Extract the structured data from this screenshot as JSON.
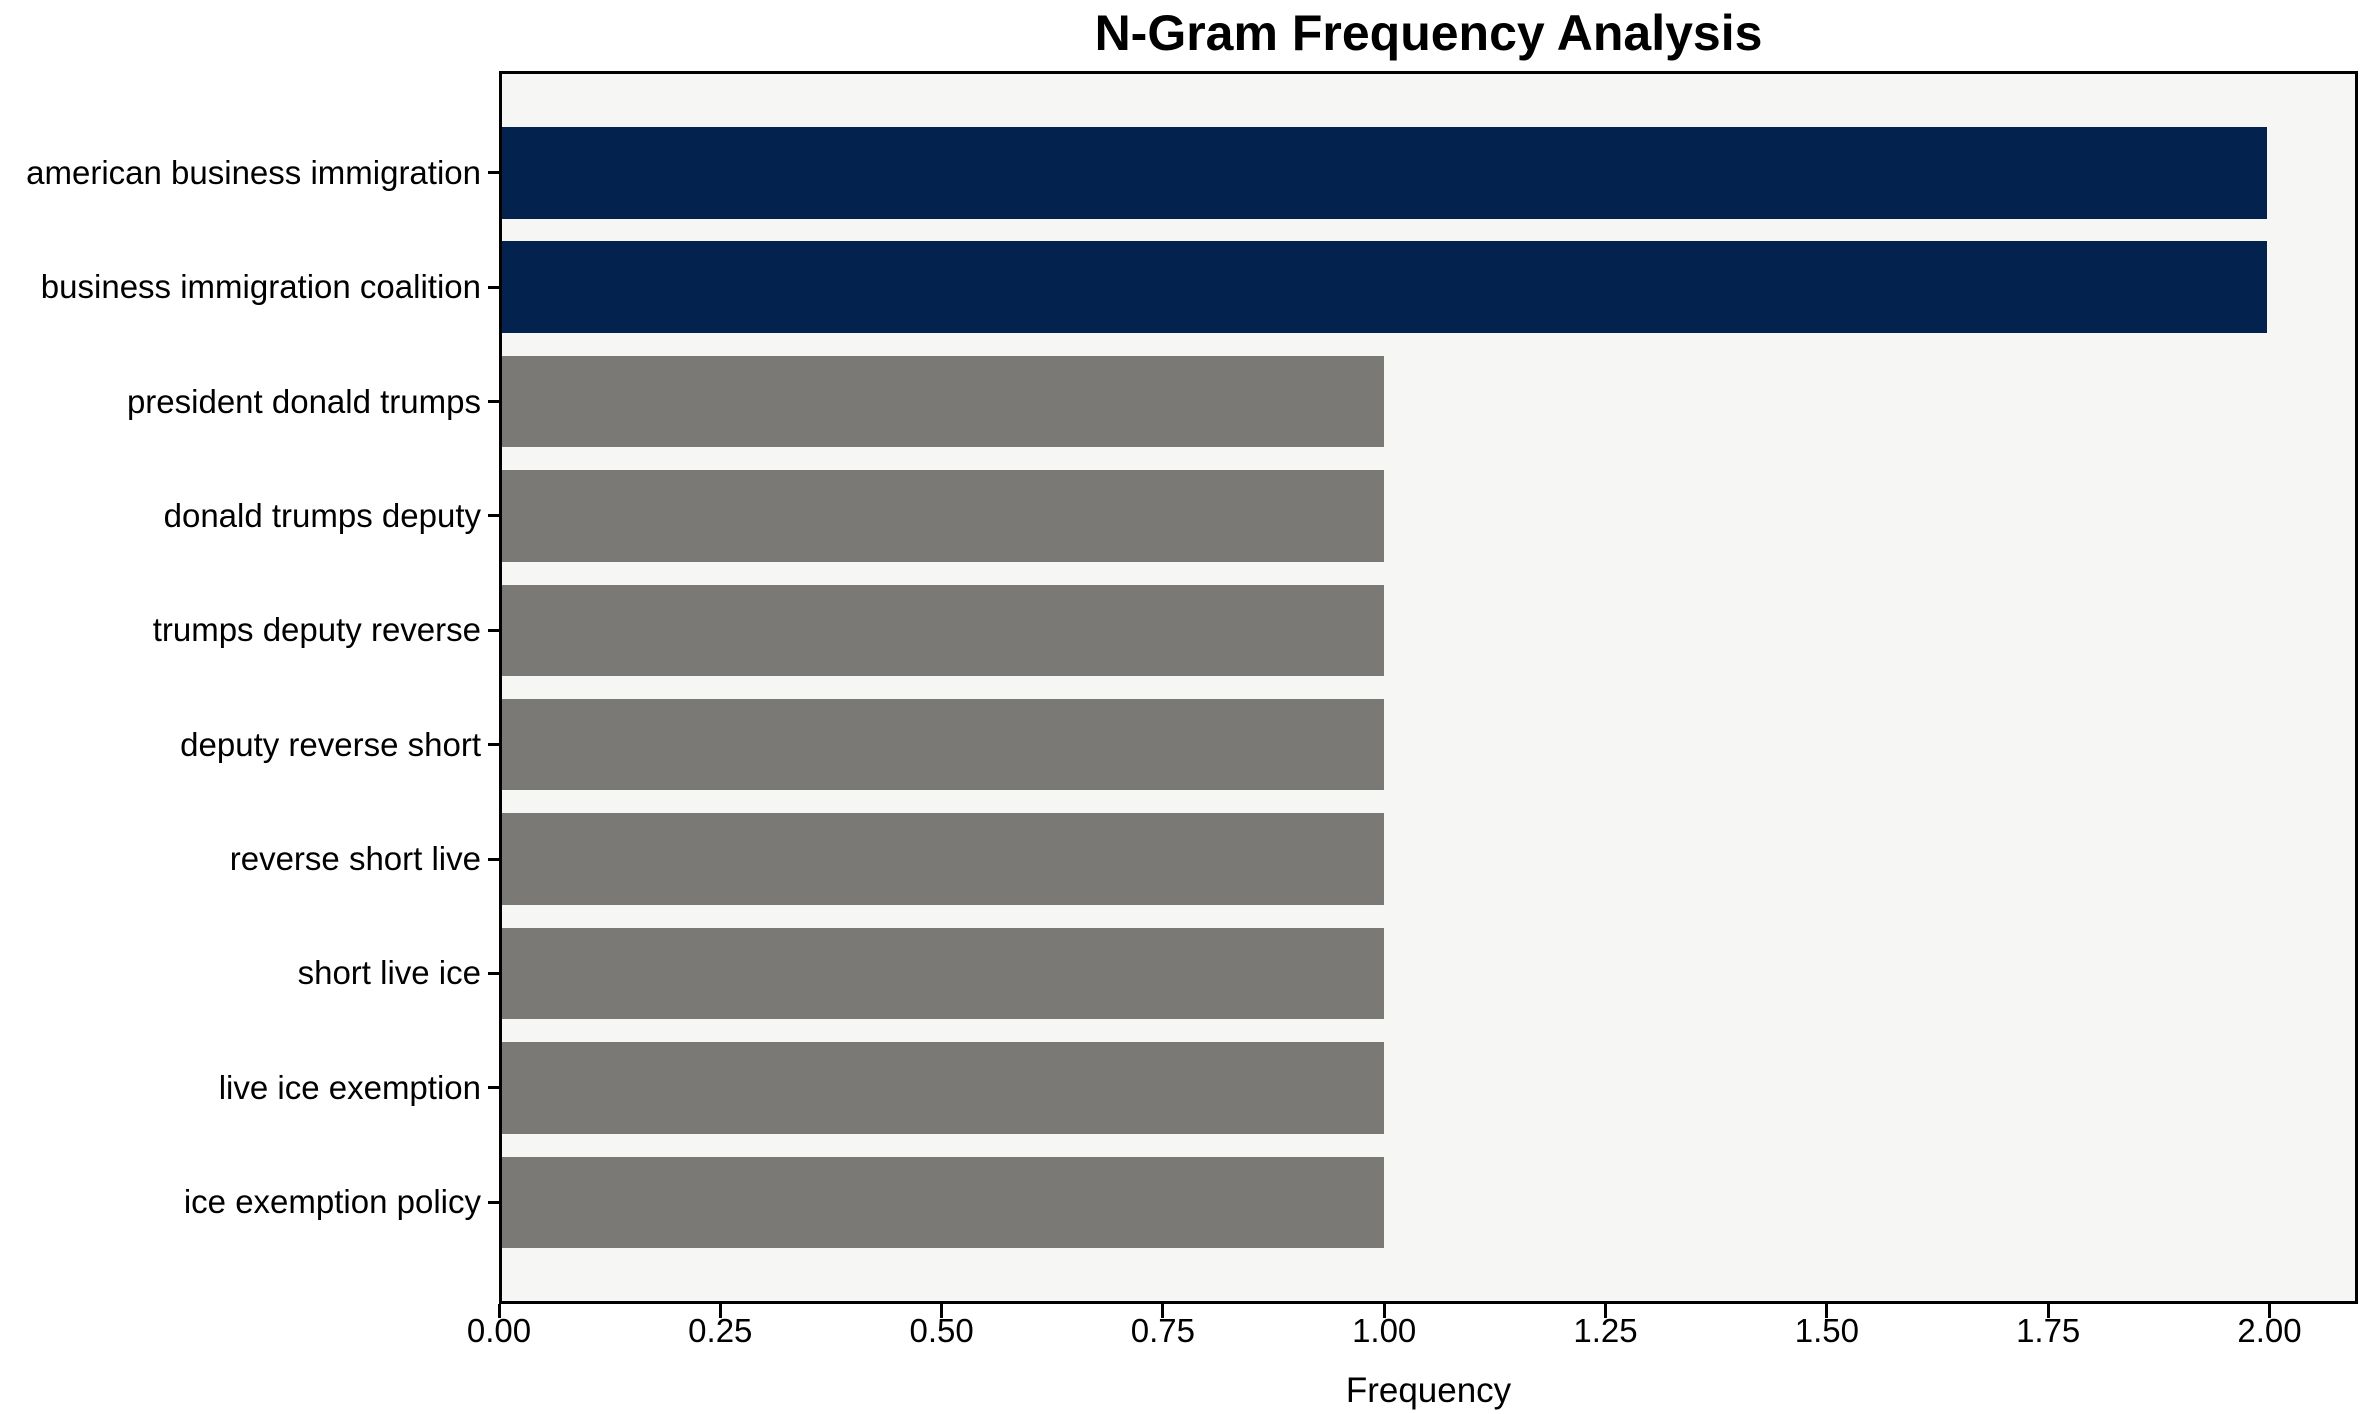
{
  "chart_data": {
    "type": "bar",
    "orientation": "horizontal",
    "title": "N-Gram Frequency Analysis",
    "xlabel": "Frequency",
    "ylabel": "",
    "categories": [
      "american business immigration",
      "business immigration coalition",
      "president donald trumps",
      "donald trumps deputy",
      "trumps deputy reverse",
      "deputy reverse short",
      "reverse short live",
      "short live ice",
      "live ice exemption",
      "ice exemption policy"
    ],
    "values": [
      2,
      2,
      1,
      1,
      1,
      1,
      1,
      1,
      1,
      1
    ],
    "bar_colors": [
      "#03234e",
      "#03234e",
      "#7a7975",
      "#7a7975",
      "#7a7975",
      "#7a7975",
      "#7a7975",
      "#7a7975",
      "#7a7975",
      "#7a7975"
    ],
    "xlim": [
      0,
      2.1
    ],
    "xticks": [
      "0.00",
      "0.25",
      "0.50",
      "0.75",
      "1.00",
      "1.25",
      "1.50",
      "1.75",
      "2.00"
    ],
    "xtick_values": [
      0,
      0.25,
      0.5,
      0.75,
      1.0,
      1.25,
      1.5,
      1.75,
      2.0
    ],
    "grid": false,
    "legend": false,
    "plot_background": "#f6f6f5",
    "figure_background": "#ffffff",
    "spine_color": "#000000",
    "color_high": "#03234e",
    "color_low": "#7a7975"
  }
}
